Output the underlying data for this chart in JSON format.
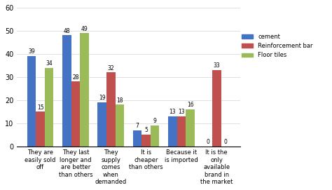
{
  "categories": [
    "They are\neasily sold\noff",
    "They last\nlonger and\nare better\nthan others",
    "They\nsupply\ncomes\nwhen\ndemanded",
    "It is\ncheaper\nthan others",
    "Because it\nis imported",
    "It is the\nonly\navailable\nbrand in\nthe market"
  ],
  "series": {
    "cement": [
      39,
      48,
      19,
      7,
      13,
      0
    ],
    "Reinforcement bar": [
      15,
      28,
      32,
      5,
      13,
      33
    ],
    "Floor tiles": [
      34,
      49,
      18,
      9,
      16,
      0
    ]
  },
  "colors": {
    "cement": "#4472C4",
    "Reinforcement bar": "#C0504D",
    "Floor tiles": "#9BBB59"
  },
  "ylim": [
    0,
    60
  ],
  "yticks": [
    0,
    10,
    20,
    30,
    40,
    50,
    60
  ],
  "legend_labels": [
    "cement",
    "Reinforcement bar",
    "Floor tiles"
  ],
  "bar_width": 0.25,
  "figsize": [
    4.74,
    2.71
  ],
  "dpi": 100
}
